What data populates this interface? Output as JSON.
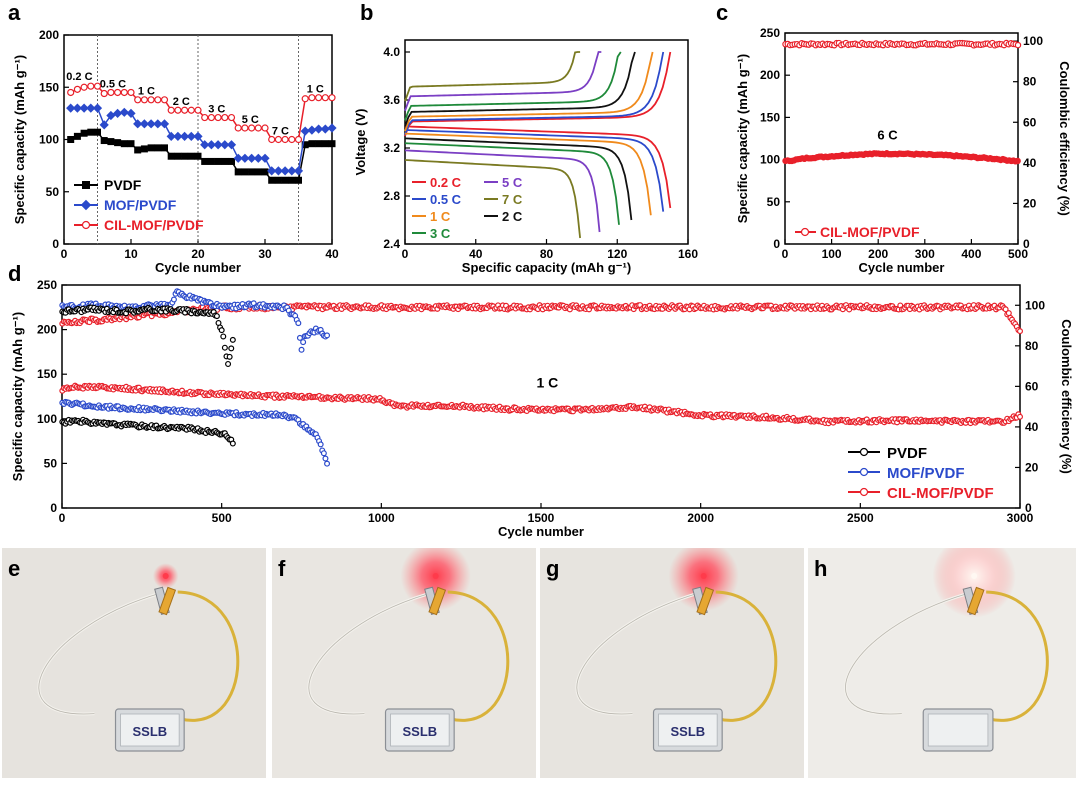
{
  "panel_letters": [
    "a",
    "b",
    "c",
    "d",
    "e",
    "f",
    "g",
    "h"
  ],
  "chart_data": [
    {
      "panel": "a",
      "type": "scatter",
      "xlabel": "Cycle number",
      "ylabel": "Specific capacity (mAh g⁻¹)",
      "xlim": [
        0,
        40
      ],
      "ylim": [
        0,
        200
      ],
      "xticks": [
        0,
        10,
        20,
        30,
        40
      ],
      "yticks": [
        0,
        50,
        100,
        150,
        200
      ],
      "rate_labels": [
        "0.2 C",
        "0.5 C",
        "1 C",
        "2 C",
        "3 C",
        "5 C",
        "7 C",
        "1 C"
      ],
      "legend": "lower-left",
      "series": [
        {
          "name": "PVDF",
          "color": "#000000",
          "marker": "square",
          "x": [
            1,
            2,
            3,
            4,
            5,
            6,
            7,
            8,
            9,
            10,
            11,
            12,
            13,
            14,
            15,
            16,
            17,
            18,
            19,
            20,
            21,
            22,
            23,
            24,
            25,
            26,
            27,
            28,
            29,
            30,
            31,
            32,
            33,
            34,
            35,
            36,
            37,
            38,
            39,
            40
          ],
          "y": [
            100,
            103,
            106,
            107,
            107,
            99,
            98,
            97,
            96,
            96,
            90,
            91,
            92,
            92,
            92,
            84,
            84,
            84,
            84,
            84,
            79,
            79,
            79,
            79,
            79,
            69,
            69,
            69,
            69,
            69,
            61,
            61,
            61,
            61,
            61,
            95,
            96,
            96,
            96,
            96
          ]
        },
        {
          "name": "MOF/PVDF",
          "color": "#2b4acb",
          "marker": "diamond",
          "x": [
            1,
            2,
            3,
            4,
            5,
            6,
            7,
            8,
            9,
            10,
            11,
            12,
            13,
            14,
            15,
            16,
            17,
            18,
            19,
            20,
            21,
            22,
            23,
            24,
            25,
            26,
            27,
            28,
            29,
            30,
            31,
            32,
            33,
            34,
            35,
            36,
            37,
            38,
            39,
            40
          ],
          "y": [
            130,
            130,
            130,
            130,
            130,
            114,
            123,
            125,
            126,
            125,
            115,
            115,
            115,
            115,
            115,
            103,
            103,
            103,
            103,
            103,
            95,
            95,
            95,
            95,
            95,
            82,
            82,
            82,
            82,
            82,
            70,
            70,
            70,
            70,
            70,
            108,
            109,
            110,
            110,
            111
          ]
        },
        {
          "name": "CIL-MOF/PVDF",
          "color": "#e8202a",
          "marker": "circle",
          "x": [
            1,
            2,
            3,
            4,
            5,
            6,
            7,
            8,
            9,
            10,
            11,
            12,
            13,
            14,
            15,
            16,
            17,
            18,
            19,
            20,
            21,
            22,
            23,
            24,
            25,
            26,
            27,
            28,
            29,
            30,
            31,
            32,
            33,
            34,
            35,
            36,
            37,
            38,
            39,
            40
          ],
          "y": [
            145,
            148,
            150,
            151,
            151,
            144,
            145,
            145,
            145,
            145,
            138,
            138,
            138,
            138,
            138,
            128,
            128,
            128,
            128,
            128,
            121,
            121,
            121,
            121,
            121,
            111,
            111,
            111,
            111,
            111,
            100,
            100,
            100,
            100,
            100,
            139,
            140,
            140,
            140,
            140
          ]
        }
      ]
    },
    {
      "panel": "b",
      "type": "line",
      "xlabel": "Specific capacity (mAh g⁻¹)",
      "ylabel": "Voltage (V)",
      "xlim": [
        0,
        160
      ],
      "ylim": [
        2.4,
        4.1
      ],
      "xticks": [
        0,
        40,
        80,
        120,
        160
      ],
      "yticks": [
        2.4,
        2.8,
        3.2,
        3.6,
        4.0
      ],
      "legend": "lower-left",
      "series": [
        {
          "name": "0.2 C",
          "color": "#e8202a",
          "charge_capacity": 150,
          "charge_plateau": 3.42,
          "discharge_capacity": 150,
          "discharge_plateau": 3.38
        },
        {
          "name": "0.5 C",
          "color": "#2b4acb",
          "charge_capacity": 146,
          "charge_plateau": 3.43,
          "discharge_capacity": 146,
          "discharge_plateau": 3.35
        },
        {
          "name": "1 C",
          "color": "#f08a1c",
          "charge_capacity": 140,
          "charge_plateau": 3.46,
          "discharge_capacity": 139,
          "discharge_plateau": 3.32
        },
        {
          "name": "2 C",
          "color": "#111111",
          "charge_capacity": 130,
          "charge_plateau": 3.5,
          "discharge_capacity": 128,
          "discharge_plateau": 3.28
        },
        {
          "name": "3 C",
          "color": "#1f8a3a",
          "charge_capacity": 122,
          "charge_plateau": 3.55,
          "discharge_capacity": 121,
          "discharge_plateau": 3.24
        },
        {
          "name": "5 C",
          "color": "#7b3fc4",
          "charge_capacity": 111,
          "charge_plateau": 3.63,
          "discharge_capacity": 110,
          "discharge_plateau": 3.18
        },
        {
          "name": "7 C",
          "color": "#7a7a22",
          "charge_capacity": 99,
          "charge_plateau": 3.71,
          "discharge_capacity": 99,
          "discharge_plateau": 3.1
        }
      ]
    },
    {
      "panel": "c",
      "type": "scatter",
      "xlabel": "Cycle number",
      "ylabel": "Specific capacity (mAh g⁻¹)",
      "y2label": "Coulombic efficiency (%)",
      "xlim": [
        0,
        500
      ],
      "ylim": [
        0,
        250
      ],
      "y2lim": [
        0,
        104
      ],
      "xticks": [
        0,
        100,
        200,
        300,
        400,
        500
      ],
      "yticks": [
        0,
        50,
        100,
        150,
        200,
        250
      ],
      "y2ticks": [
        0,
        20,
        40,
        60,
        80,
        100
      ],
      "annotation": "6 C",
      "legend": "lower-left",
      "series": [
        {
          "name": "CIL-MOF/PVDF",
          "color": "#e8202a",
          "capacity": {
            "x": [
              1,
              50,
              100,
              150,
              200,
              250,
              300,
              350,
              400,
              450,
              500
            ],
            "y": [
              98,
              102,
              104,
              106,
              107,
              107,
              106,
              105,
              103,
              101,
              98
            ]
          },
          "coulombic_efficiency": {
            "x": [
              1,
              500
            ],
            "y": [
              98.5,
              98.5
            ]
          }
        }
      ]
    },
    {
      "panel": "d",
      "type": "scatter",
      "xlabel": "Cycle number",
      "ylabel": "Specific capacity (mAh g⁻¹)",
      "y2label": "Coulombic efficiency (%)",
      "xlim": [
        0,
        3000
      ],
      "ylim": [
        0,
        250
      ],
      "y2lim": [
        0,
        110
      ],
      "xticks": [
        0,
        500,
        1000,
        1500,
        2000,
        2500,
        3000
      ],
      "yticks": [
        0,
        50,
        100,
        150,
        200,
        250
      ],
      "y2ticks": [
        0,
        20,
        40,
        60,
        80,
        100
      ],
      "annotation": "1 C",
      "legend": "lower-right",
      "series": [
        {
          "name": "PVDF",
          "color": "#000000",
          "capacity": {
            "x": [
              1,
              50,
              100,
              200,
              300,
              400,
              450,
              500,
              520,
              535
            ],
            "y": [
              96,
              98,
              95,
              93,
              91,
              89,
              86,
              84,
              80,
              74
            ]
          },
          "coulombic_efficiency": {
            "x": [
              1,
              100,
              200,
              300,
              400,
              480,
              500,
              510,
              520,
              535
            ],
            "y": [
              97,
              98,
              97,
              98,
              97,
              96,
              88,
              80,
              70,
              84
            ]
          }
        },
        {
          "name": "MOF/PVDF",
          "color": "#2b4acb",
          "capacity": {
            "x": [
              1,
              100,
              200,
              300,
              400,
              500,
              600,
              700,
              740,
              760,
              800,
              830
            ],
            "y": [
              118,
              114,
              112,
              110,
              108,
              106,
              105,
              104,
              98,
              92,
              80,
              50
            ]
          },
          "coulombic_efficiency": {
            "x": [
              1,
              100,
              200,
              340,
              360,
              500,
              600,
              700,
              740,
              750,
              760,
              800,
              830
            ],
            "y": [
              99,
              100,
              99,
              100,
              106,
              99,
              100,
              99,
              92,
              77,
              85,
              88,
              85
            ]
          }
        },
        {
          "name": "CIL-MOF/PVDF",
          "color": "#e8202a",
          "capacity": {
            "x": [
              1,
              50,
              200,
              400,
              600,
              800,
              1000,
              1050,
              1200,
              1400,
              1600,
              1800,
              2000,
              2200,
              2400,
              2600,
              2800,
              2950,
              3000
            ],
            "y": [
              132,
              136,
              134,
              129,
              126,
              124,
              122,
              114,
              115,
              111,
              110,
              113,
              104,
              102,
              97,
              98,
              97,
              97,
              104
            ]
          },
          "coulombic_efficiency": {
            "x": [
              1,
              500,
              1000,
              1500,
              2000,
              2500,
              2950,
              2970,
              3000
            ],
            "y": [
              91,
              99,
              99,
              99,
              99,
              99,
              99,
              94,
              87
            ]
          }
        }
      ]
    }
  ],
  "photos": [
    {
      "panel": "e",
      "label": "SSLB",
      "led": "dim",
      "bg": "#e6e3de"
    },
    {
      "panel": "f",
      "label": "SSLB",
      "led": "bright",
      "bg": "#e9e6e1"
    },
    {
      "panel": "g",
      "label": "SSLB",
      "led": "bright",
      "bg": "#e7e4df"
    },
    {
      "panel": "h",
      "label": "",
      "led": "white",
      "bg": "#eeece8"
    }
  ]
}
